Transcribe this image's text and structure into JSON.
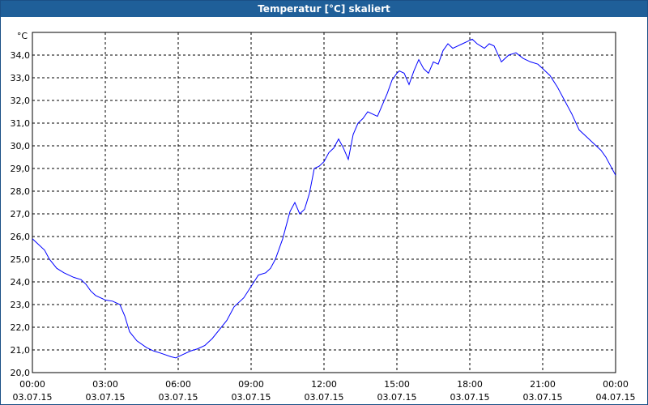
{
  "window": {
    "title": "Temperatur [°C] skaliert"
  },
  "chart_data": {
    "type": "line",
    "title": "Temperatur [°C] skaliert",
    "ylabel": "°C",
    "xlabel": "",
    "ylim": [
      20.0,
      35.0
    ],
    "xlim_hours": [
      0,
      24
    ],
    "grid": true,
    "y_ticks": [
      "20,0",
      "21,0",
      "22,0",
      "23,0",
      "24,0",
      "25,0",
      "26,0",
      "27,0",
      "28,0",
      "29,0",
      "30,0",
      "31,0",
      "32,0",
      "33,0",
      "34,0"
    ],
    "x_ticks": [
      {
        "time": "00:00",
        "date": "03.07.15"
      },
      {
        "time": "03:00",
        "date": "03.07.15"
      },
      {
        "time": "06:00",
        "date": "03.07.15"
      },
      {
        "time": "09:00",
        "date": "03.07.15"
      },
      {
        "time": "12:00",
        "date": "03.07.15"
      },
      {
        "time": "15:00",
        "date": "03.07.15"
      },
      {
        "time": "18:00",
        "date": "03.07.15"
      },
      {
        "time": "21:00",
        "date": "03.07.15"
      },
      {
        "time": "00:00",
        "date": "04.07.15"
      }
    ],
    "series": [
      {
        "color": "#0000ff",
        "x_hours": [
          0.0,
          0.2,
          0.5,
          0.7,
          1.0,
          1.3,
          1.7,
          2.0,
          2.2,
          2.4,
          2.6,
          3.0,
          3.3,
          3.6,
          3.8,
          4.0,
          4.3,
          4.7,
          5.0,
          5.3,
          5.7,
          5.9,
          6.2,
          6.5,
          6.8,
          7.1,
          7.4,
          7.7,
          8.0,
          8.3,
          8.7,
          9.0,
          9.3,
          9.6,
          9.8,
          10.0,
          10.3,
          10.6,
          10.8,
          11.0,
          11.2,
          11.4,
          11.6,
          11.8,
          12.0,
          12.2,
          12.4,
          12.6,
          12.8,
          13.0,
          13.2,
          13.4,
          13.6,
          13.8,
          14.0,
          14.2,
          14.4,
          14.6,
          14.8,
          15.0,
          15.1,
          15.3,
          15.5,
          15.7,
          15.9,
          16.1,
          16.3,
          16.5,
          16.7,
          16.9,
          17.1,
          17.3,
          17.5,
          17.7,
          17.9,
          18.1,
          18.3,
          18.6,
          18.8,
          19.0,
          19.3,
          19.6,
          19.9,
          20.2,
          20.5,
          20.8,
          21.0,
          21.3,
          21.6,
          21.9,
          22.2,
          22.5,
          22.8,
          23.1,
          23.4,
          23.6,
          23.8,
          24.0
        ],
        "y": [
          25.9,
          25.7,
          25.4,
          25.0,
          24.6,
          24.4,
          24.2,
          24.1,
          23.9,
          23.6,
          23.4,
          23.2,
          23.15,
          23.0,
          22.5,
          21.8,
          21.4,
          21.1,
          20.95,
          20.85,
          20.7,
          20.65,
          20.8,
          20.95,
          21.05,
          21.2,
          21.5,
          21.9,
          22.3,
          22.9,
          23.3,
          23.8,
          24.3,
          24.4,
          24.6,
          25.0,
          25.9,
          27.1,
          27.5,
          27.0,
          27.2,
          27.9,
          29.0,
          29.1,
          29.3,
          29.7,
          29.9,
          30.3,
          29.9,
          29.4,
          30.5,
          31.0,
          31.2,
          31.5,
          31.4,
          31.3,
          31.8,
          32.3,
          32.9,
          33.2,
          33.3,
          33.2,
          32.7,
          33.3,
          33.8,
          33.4,
          33.2,
          33.7,
          33.6,
          34.2,
          34.5,
          34.3,
          34.4,
          34.5,
          34.6,
          34.7,
          34.5,
          34.3,
          34.5,
          34.4,
          33.7,
          34.0,
          34.1,
          33.85,
          33.7,
          33.6,
          33.4,
          33.1,
          32.6,
          32.0,
          31.4,
          30.7,
          30.4,
          30.1,
          29.8,
          29.5,
          29.1,
          28.7
        ]
      }
    ]
  }
}
